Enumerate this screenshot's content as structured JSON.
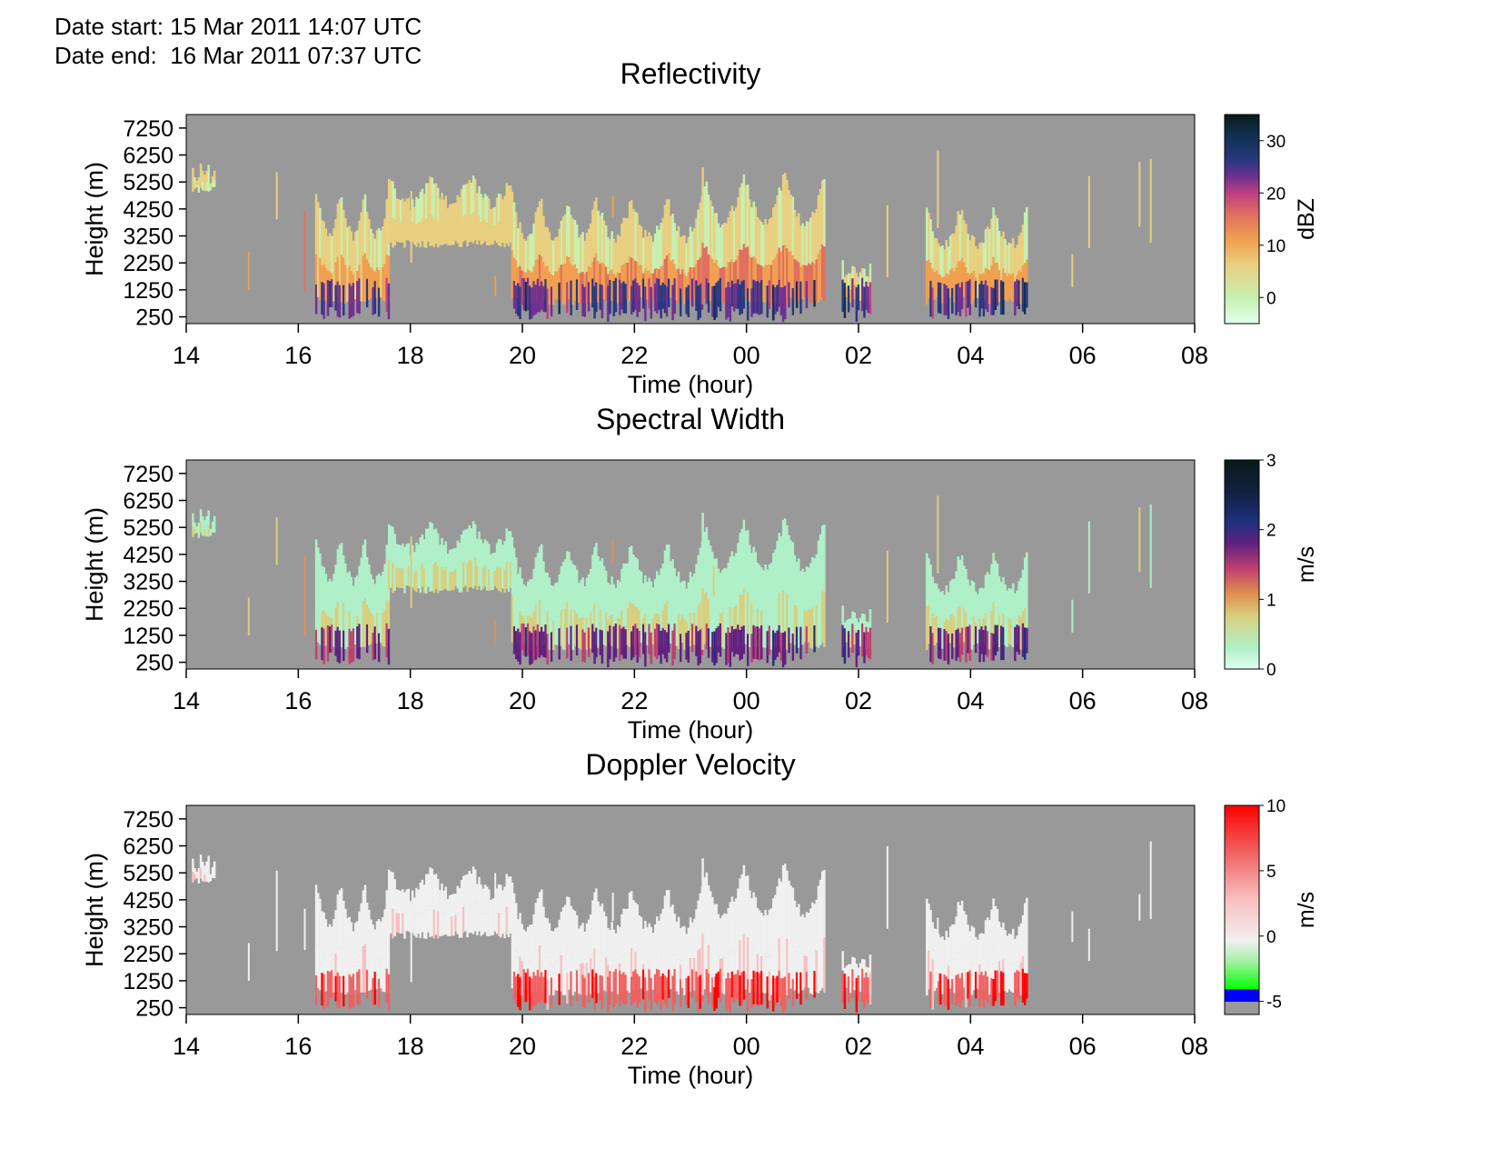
{
  "header": {
    "start_label": "Date start:",
    "start_value": "15 Mar 2011 14:07 UTC",
    "end_label": "Date end:",
    "end_value": "16 Mar 2011 07:37 UTC"
  },
  "colors": {
    "background_missing": "#999999",
    "reflectivity_scale": [
      "#e0fff0",
      "#c8f0b0",
      "#e8d080",
      "#f0a050",
      "#e07060",
      "#c04080",
      "#703090",
      "#283880",
      "#103050",
      "#0a1a1a"
    ],
    "spectral_width_scale": [
      "#e0fff0",
      "#b0f0c8",
      "#d8d080",
      "#e09050",
      "#c04070",
      "#602080",
      "#203080",
      "#102040",
      "#0a1a1a"
    ],
    "doppler_scale": [
      "#9a9a9a",
      "#0000ff",
      "#00ff00",
      "#c0f0c0",
      "#f0f0f0",
      "#f8c0c0",
      "#f06060",
      "#ff0000"
    ]
  },
  "chart_data": [
    {
      "type": "heatmap",
      "title": "Reflectivity",
      "xlabel": "Time (hour)",
      "ylabel": "Height (m)",
      "x_ticks": [
        "14",
        "16",
        "18",
        "20",
        "22",
        "00",
        "02",
        "04",
        "06",
        "08"
      ],
      "xlim_hours": [
        14,
        32
      ],
      "y_ticks": [
        250,
        1250,
        2250,
        3250,
        4250,
        5250,
        6250,
        7250
      ],
      "ylim": [
        0,
        7750
      ],
      "colorbar": {
        "label": "dBZ",
        "ticks": [
          0,
          10,
          20,
          30
        ],
        "range": [
          -5,
          35
        ]
      },
      "grid": false,
      "cloud_regions": [
        {
          "t_start": 14.1,
          "t_end": 14.5,
          "base": 4800,
          "top": 6100,
          "value": -1
        },
        {
          "t_start": 16.3,
          "t_end": 17.6,
          "base": 700,
          "top": 5100,
          "value": 5
        },
        {
          "t_start": 17.6,
          "t_end": 19.8,
          "base": 2800,
          "top": 5700,
          "value": 2
        },
        {
          "t_start": 19.8,
          "t_end": 21.3,
          "base": 700,
          "top": 4900,
          "value": 7
        },
        {
          "t_start": 21.3,
          "t_end": 23.2,
          "base": 700,
          "top": 4900,
          "value": 8
        },
        {
          "t_start": 23.2,
          "t_end": 25.4,
          "base": 700,
          "top": 5800,
          "value": 9
        },
        {
          "t_start": 25.7,
          "t_end": 26.2,
          "base": 700,
          "top": 2600,
          "value": 4
        },
        {
          "t_start": 27.2,
          "t_end": 29.0,
          "base": 700,
          "top": 4500,
          "value": 6
        }
      ]
    },
    {
      "type": "heatmap",
      "title": "Spectral Width",
      "xlabel": "Time (hour)",
      "ylabel": "Height (m)",
      "x_ticks": [
        "14",
        "16",
        "18",
        "20",
        "22",
        "00",
        "02",
        "04",
        "06",
        "08"
      ],
      "xlim_hours": [
        14,
        32
      ],
      "y_ticks": [
        250,
        1250,
        2250,
        3250,
        4250,
        5250,
        6250,
        7250
      ],
      "ylim": [
        0,
        7750
      ],
      "colorbar": {
        "label": "m/s",
        "ticks": [
          0,
          1,
          2,
          3
        ],
        "range": [
          0,
          3
        ]
      },
      "grid": false
    },
    {
      "type": "heatmap",
      "title": "Doppler Velocity",
      "xlabel": "Time (hour)",
      "ylabel": "Height (m)",
      "x_ticks": [
        "14",
        "16",
        "18",
        "20",
        "22",
        "00",
        "02",
        "04",
        "06",
        "08"
      ],
      "xlim_hours": [
        14,
        32
      ],
      "y_ticks": [
        250,
        1250,
        2250,
        3250,
        4250,
        5250,
        6250,
        7250
      ],
      "ylim": [
        0,
        7750
      ],
      "colorbar": {
        "label": "m/s",
        "ticks": [
          -5,
          0,
          5,
          10
        ],
        "range": [
          -6,
          10
        ]
      },
      "grid": false
    }
  ]
}
